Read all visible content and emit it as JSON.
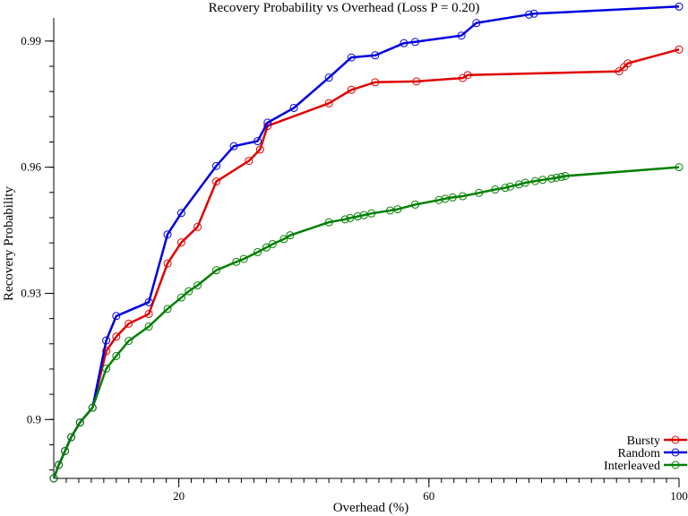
{
  "chart_data": {
    "type": "line",
    "title": "Recovery Probability vs Overhead (Loss P = 0.20)",
    "xlabel": "Overhead (%)",
    "ylabel": "Recovery Probability",
    "xlim": [
      0,
      100
    ],
    "ylim": [
      0.886,
      0.9955
    ],
    "x_ticks": [
      20,
      60,
      100
    ],
    "x_minor_ticks": [
      2,
      4,
      6,
      8,
      10,
      12,
      14,
      16,
      18,
      20,
      22,
      24,
      26,
      28,
      30,
      32,
      34,
      36,
      38,
      40,
      42,
      44,
      46,
      48,
      50,
      52,
      54,
      56,
      58,
      60,
      62,
      64,
      66,
      68,
      70,
      72,
      74,
      76,
      78,
      80,
      82,
      84,
      86,
      88,
      90,
      92,
      94,
      96,
      98,
      100
    ],
    "y_ticks": [
      0.9,
      0.93,
      0.96,
      0.99
    ],
    "y_minor_ticks": [
      0.888,
      0.894,
      0.9,
      0.906,
      0.912,
      0.918,
      0.924,
      0.93,
      0.936,
      0.942,
      0.948,
      0.954,
      0.96,
      0.966,
      0.972,
      0.978,
      0.984,
      0.99
    ],
    "grid": false,
    "legend_position": "bottom-right",
    "series": [
      {
        "name": "Bursty",
        "color": "#e00000",
        "x": [
          0,
          0.8,
          1.8,
          2.8,
          4.2,
          6.2,
          8.4,
          10.0,
          12.0,
          15.2,
          18.2,
          20.4,
          23.0,
          26.0,
          31.2,
          33.0,
          34.2,
          44.0,
          47.6,
          51.4,
          58.0,
          65.4,
          66.2,
          90.4,
          91.2,
          91.8,
          100.0
        ],
        "y": [
          0.886,
          0.8892,
          0.8925,
          0.8958,
          0.8993,
          0.9028,
          0.9163,
          0.9197,
          0.9228,
          0.9251,
          0.9371,
          0.9421,
          0.9458,
          0.9566,
          0.9615,
          0.9642,
          0.9698,
          0.9752,
          0.9784,
          0.9802,
          0.9804,
          0.9812,
          0.9819,
          0.9828,
          0.9838,
          0.9847,
          0.988
        ]
      },
      {
        "name": "Random",
        "color": "#0000e0",
        "x": [
          0,
          0.8,
          1.8,
          2.8,
          4.2,
          6.2,
          8.4,
          10.0,
          15.2,
          18.2,
          20.4,
          26.0,
          28.8,
          32.6,
          34.2,
          38.4,
          44.0,
          47.6,
          51.4,
          56.0,
          57.8,
          65.2,
          67.6,
          76.0,
          76.8,
          100.0
        ],
        "y": [
          0.886,
          0.8892,
          0.8925,
          0.8958,
          0.8993,
          0.9028,
          0.9188,
          0.9246,
          0.9279,
          0.944,
          0.9491,
          0.9603,
          0.965,
          0.9662,
          0.9706,
          0.9741,
          0.9813,
          0.9861,
          0.9866,
          0.9895,
          0.9898,
          0.9913,
          0.9943,
          0.9963,
          0.9965,
          0.9982
        ]
      },
      {
        "name": "Interleaved",
        "color": "#008000",
        "x": [
          0,
          0.8,
          1.8,
          2.8,
          4.2,
          6.2,
          8.4,
          10.0,
          12.0,
          15.2,
          18.2,
          20.4,
          21.6,
          23.0,
          26.0,
          29.2,
          30.4,
          32.6,
          34.0,
          35.0,
          36.8,
          37.8,
          44.0,
          46.6,
          47.4,
          48.6,
          49.6,
          50.8,
          53.8,
          55.0,
          57.8,
          61.6,
          62.6,
          63.8,
          65.4,
          68.0,
          70.6,
          72.2,
          73.0,
          74.4,
          75.4,
          77.0,
          78.2,
          79.6,
          80.4,
          81.2,
          81.8,
          100.0
        ],
        "y": [
          0.886,
          0.8892,
          0.8925,
          0.8958,
          0.8993,
          0.9028,
          0.9121,
          0.9151,
          0.9187,
          0.9221,
          0.9263,
          0.929,
          0.9305,
          0.9319,
          0.9355,
          0.9375,
          0.9382,
          0.9398,
          0.9409,
          0.9417,
          0.9429,
          0.9438,
          0.9469,
          0.9476,
          0.9479,
          0.9483,
          0.9486,
          0.949,
          0.9497,
          0.95,
          0.9511,
          0.9522,
          0.9525,
          0.9528,
          0.9531,
          0.9539,
          0.9547,
          0.9551,
          0.9554,
          0.9559,
          0.9563,
          0.9567,
          0.957,
          0.9573,
          0.9575,
          0.9577,
          0.9579,
          0.96
        ]
      }
    ]
  }
}
